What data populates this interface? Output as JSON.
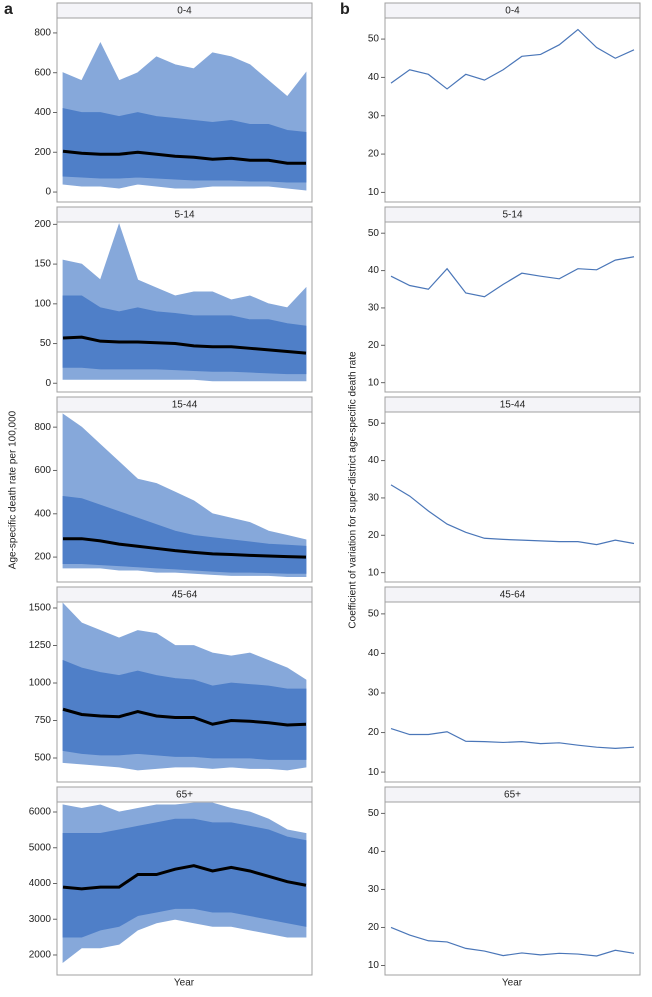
{
  "figure": {
    "panels": [
      {
        "label": "a",
        "ylabel": "Age-specific death rate per 100,000",
        "xlabel": "Year"
      },
      {
        "label": "b",
        "ylabel": "Coefficient of variation for super-district age-specific death rate",
        "xlabel": "Year"
      }
    ]
  },
  "chart_data": [
    {
      "type": "line",
      "title": "0-4",
      "ylim": [
        -50,
        875
      ],
      "yticks": [
        0,
        200,
        400,
        600,
        800
      ],
      "categories": [
        null,
        null,
        null,
        null,
        null,
        null,
        null,
        null,
        null,
        null,
        null,
        null,
        null,
        null
      ],
      "bands": [
        {
          "color": "#86a8da",
          "lower": [
            40,
            30,
            30,
            20,
            40,
            30,
            20,
            20,
            30,
            30,
            30,
            30,
            20,
            10
          ],
          "upper": [
            600,
            560,
            750,
            560,
            600,
            680,
            640,
            620,
            700,
            680,
            640,
            560,
            480,
            600
          ]
        },
        {
          "color": "#4f7fc8",
          "lower": [
            80,
            75,
            70,
            70,
            75,
            70,
            65,
            60,
            60,
            60,
            55,
            55,
            50,
            50
          ],
          "upper": [
            420,
            400,
            400,
            380,
            400,
            380,
            370,
            360,
            350,
            360,
            340,
            340,
            310,
            300
          ]
        }
      ],
      "series": [
        {
          "color": "#000000",
          "values": [
            205,
            195,
            190,
            190,
            200,
            190,
            180,
            175,
            165,
            170,
            160,
            160,
            145,
            145
          ]
        }
      ]
    },
    {
      "type": "line",
      "title": "5-14",
      "ylim": [
        -11,
        203
      ],
      "yticks": [
        0,
        50,
        100,
        150,
        200
      ],
      "categories": [
        null,
        null,
        null,
        null,
        null,
        null,
        null,
        null,
        null,
        null,
        null,
        null,
        null,
        null
      ],
      "bands": [
        {
          "color": "#86a8da",
          "lower": [
            5,
            5,
            5,
            5,
            5,
            5,
            5,
            5,
            3,
            3,
            3,
            3,
            3,
            3
          ],
          "upper": [
            155,
            150,
            130,
            200,
            130,
            120,
            110,
            115,
            115,
            105,
            110,
            100,
            95,
            120
          ]
        },
        {
          "color": "#4f7fc8",
          "lower": [
            20,
            20,
            18,
            18,
            18,
            18,
            17,
            16,
            15,
            15,
            14,
            13,
            12,
            12
          ],
          "upper": [
            110,
            110,
            95,
            90,
            95,
            90,
            88,
            85,
            85,
            85,
            80,
            80,
            75,
            72
          ]
        }
      ],
      "series": [
        {
          "color": "#000000",
          "values": [
            57,
            58,
            53,
            52,
            52,
            51,
            50,
            47,
            46,
            46,
            44,
            42,
            40,
            38
          ]
        }
      ]
    },
    {
      "type": "line",
      "title": "15-44",
      "ylim": [
        85,
        870
      ],
      "yticks": [
        200,
        400,
        600,
        800
      ],
      "categories": [
        null,
        null,
        null,
        null,
        null,
        null,
        null,
        null,
        null,
        null,
        null,
        null,
        null,
        null
      ],
      "bands": [
        {
          "color": "#86a8da",
          "lower": [
            150,
            150,
            150,
            140,
            140,
            130,
            130,
            125,
            120,
            115,
            115,
            115,
            110,
            110
          ],
          "upper": [
            860,
            800,
            720,
            640,
            560,
            540,
            500,
            460,
            400,
            380,
            360,
            320,
            300,
            280
          ]
        },
        {
          "color": "#4f7fc8",
          "lower": [
            170,
            170,
            165,
            160,
            155,
            150,
            145,
            140,
            135,
            130,
            130,
            128,
            125,
            125
          ],
          "upper": [
            480,
            470,
            440,
            410,
            380,
            350,
            320,
            300,
            290,
            280,
            270,
            260,
            255,
            250
          ]
        }
      ],
      "series": [
        {
          "color": "#000000",
          "values": [
            285,
            285,
            275,
            260,
            250,
            240,
            230,
            222,
            215,
            212,
            208,
            205,
            202,
            200
          ]
        }
      ]
    },
    {
      "type": "line",
      "title": "45-64",
      "ylim": [
        340,
        1540
      ],
      "yticks": [
        500,
        750,
        1000,
        1250,
        1500
      ],
      "categories": [
        null,
        null,
        null,
        null,
        null,
        null,
        null,
        null,
        null,
        null,
        null,
        null,
        null,
        null
      ],
      "bands": [
        {
          "color": "#86a8da",
          "lower": [
            470,
            460,
            450,
            440,
            420,
            430,
            440,
            440,
            430,
            440,
            430,
            430,
            420,
            440
          ],
          "upper": [
            1530,
            1400,
            1350,
            1300,
            1350,
            1330,
            1250,
            1250,
            1200,
            1180,
            1200,
            1150,
            1100,
            1020
          ]
        },
        {
          "color": "#4f7fc8",
          "lower": [
            550,
            530,
            520,
            520,
            530,
            520,
            510,
            510,
            500,
            500,
            500,
            490,
            490,
            490
          ],
          "upper": [
            1150,
            1100,
            1070,
            1050,
            1080,
            1050,
            1030,
            1020,
            980,
            1000,
            990,
            980,
            960,
            960
          ]
        }
      ],
      "series": [
        {
          "color": "#000000",
          "values": [
            825,
            790,
            780,
            775,
            810,
            780,
            770,
            770,
            725,
            750,
            745,
            735,
            720,
            725
          ]
        }
      ]
    },
    {
      "type": "line",
      "title": "65+",
      "ylim": [
        1440,
        6280
      ],
      "yticks": [
        2000,
        3000,
        4000,
        5000,
        6000
      ],
      "categories": [
        null,
        null,
        null,
        null,
        null,
        null,
        null,
        null,
        null,
        null,
        null,
        null,
        null,
        null
      ],
      "bands": [
        {
          "color": "#86a8da",
          "lower": [
            1800,
            2200,
            2200,
            2300,
            2700,
            2900,
            3000,
            2900,
            2800,
            2800,
            2700,
            2600,
            2500,
            2500
          ],
          "upper": [
            6200,
            6100,
            6200,
            6000,
            6100,
            6200,
            6200,
            6250,
            6250,
            6100,
            6000,
            5800,
            5500,
            5400
          ]
        },
        {
          "color": "#4f7fc8",
          "lower": [
            2500,
            2500,
            2700,
            2800,
            3100,
            3200,
            3300,
            3300,
            3200,
            3200,
            3100,
            3000,
            2900,
            2800
          ],
          "upper": [
            5400,
            5400,
            5400,
            5500,
            5600,
            5700,
            5800,
            5800,
            5700,
            5700,
            5600,
            5500,
            5300,
            5200
          ]
        }
      ],
      "series": [
        {
          "color": "#000000",
          "values": [
            3900,
            3850,
            3900,
            3900,
            4250,
            4250,
            4400,
            4500,
            4350,
            4450,
            4350,
            4200,
            4050,
            3950
          ]
        }
      ]
    },
    {
      "type": "line",
      "title": "0-4",
      "ylim": [
        7.5,
        55.5
      ],
      "yticks": [
        10,
        20,
        30,
        40,
        50
      ],
      "categories": [
        null,
        null,
        null,
        null,
        null,
        null,
        null,
        null,
        null,
        null,
        null,
        null,
        null,
        null
      ],
      "series": [
        {
          "color": "#4a76b8",
          "values": [
            38.5,
            42,
            40.8,
            37,
            40.8,
            39.3,
            42,
            45.5,
            46,
            48.5,
            52.5,
            47.8,
            45,
            47.2
          ]
        }
      ]
    },
    {
      "type": "line",
      "title": "5-14",
      "ylim": [
        7.5,
        53
      ],
      "yticks": [
        10,
        20,
        30,
        40,
        50
      ],
      "categories": [
        null,
        null,
        null,
        null,
        null,
        null,
        null,
        null,
        null,
        null,
        null,
        null,
        null,
        null
      ],
      "series": [
        {
          "color": "#4a76b8",
          "values": [
            38.5,
            36,
            35,
            40.5,
            34,
            33,
            36.3,
            39.3,
            38.5,
            37.8,
            40.5,
            40.2,
            42.8,
            43.7
          ]
        }
      ]
    },
    {
      "type": "line",
      "title": "15-44",
      "ylim": [
        7.5,
        53
      ],
      "yticks": [
        10,
        20,
        30,
        40,
        50
      ],
      "categories": [
        null,
        null,
        null,
        null,
        null,
        null,
        null,
        null,
        null,
        null,
        null,
        null,
        null,
        null
      ],
      "series": [
        {
          "color": "#4a76b8",
          "values": [
            33.5,
            30.5,
            26.5,
            23,
            20.8,
            19.2,
            18.9,
            18.7,
            18.5,
            18.3,
            18.3,
            17.5,
            18.7,
            17.8
          ]
        }
      ]
    },
    {
      "type": "line",
      "title": "45-64",
      "ylim": [
        7.5,
        53
      ],
      "yticks": [
        10,
        20,
        30,
        40,
        50
      ],
      "categories": [
        null,
        null,
        null,
        null,
        null,
        null,
        null,
        null,
        null,
        null,
        null,
        null,
        null,
        null
      ],
      "series": [
        {
          "color": "#4a76b8",
          "values": [
            21,
            19.5,
            19.5,
            20.2,
            17.8,
            17.7,
            17.5,
            17.7,
            17.2,
            17.4,
            16.8,
            16.3,
            16,
            16.3
          ]
        }
      ]
    },
    {
      "type": "line",
      "title": "65+",
      "ylim": [
        7.5,
        53
      ],
      "yticks": [
        10,
        20,
        30,
        40,
        50
      ],
      "categories": [
        null,
        null,
        null,
        null,
        null,
        null,
        null,
        null,
        null,
        null,
        null,
        null,
        null,
        null
      ],
      "series": [
        {
          "color": "#4a76b8",
          "values": [
            20,
            18,
            16.5,
            16.2,
            14.5,
            13.8,
            12.6,
            13.3,
            12.8,
            13.2,
            13,
            12.5,
            14,
            13.2
          ]
        }
      ]
    }
  ]
}
